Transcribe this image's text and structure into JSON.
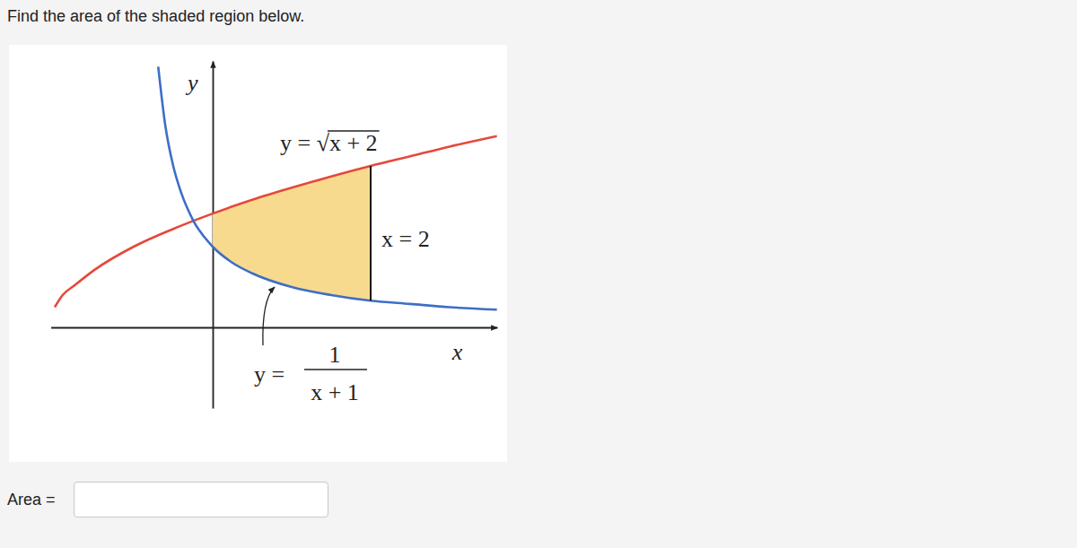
{
  "question": "Find the area of the shaded region below.",
  "answer_label": "Area =",
  "chart_data": {
    "type": "line",
    "x_label": "x",
    "y_label": "y",
    "xlim": [
      -2.05,
      3.6
    ],
    "ylim": [
      -1.0,
      3.3
    ],
    "tick_labels": false,
    "series": [
      {
        "color": "#e5483b",
        "x": [
          -2.0,
          -1.9,
          -1.75,
          -1.5,
          -1.0,
          -0.5,
          0,
          0.5,
          1,
          1.5,
          2,
          2.5,
          3,
          3.6
        ],
        "values": [
          0.25,
          0.4,
          0.52,
          0.71,
          1.0,
          1.22,
          1.41,
          1.58,
          1.73,
          1.87,
          2.0,
          2.12,
          2.24,
          2.37
        ]
      },
      {
        "color": "#3e6ec6",
        "x": [
          -0.69,
          -0.6,
          -0.5,
          -0.4,
          -0.25,
          0,
          0.25,
          0.5,
          1,
          1.5,
          2,
          2.5,
          3,
          3.6
        ],
        "values": [
          3.23,
          2.5,
          2.0,
          1.67,
          1.33,
          1.0,
          0.8,
          0.67,
          0.5,
          0.4,
          0.33,
          0.29,
          0.25,
          0.22
        ]
      }
    ],
    "shaded_region": {
      "color": "#f8da8e",
      "x": [
        0,
        0.25,
        0.5,
        0.75,
        1,
        1.25,
        1.5,
        1.75,
        2
      ],
      "upper": [
        1.41,
        1.5,
        1.58,
        1.66,
        1.73,
        1.8,
        1.87,
        1.94,
        2.0
      ],
      "lower": [
        1.0,
        0.8,
        0.67,
        0.57,
        0.5,
        0.44,
        0.4,
        0.36,
        0.33
      ]
    },
    "vertical_line": {
      "x": 2,
      "label": "x = 2"
    },
    "annotations": [
      {
        "text": "y = √x + 2"
      },
      {
        "text": "y =",
        "numerator": "1",
        "denominator": "x + 1"
      }
    ]
  }
}
